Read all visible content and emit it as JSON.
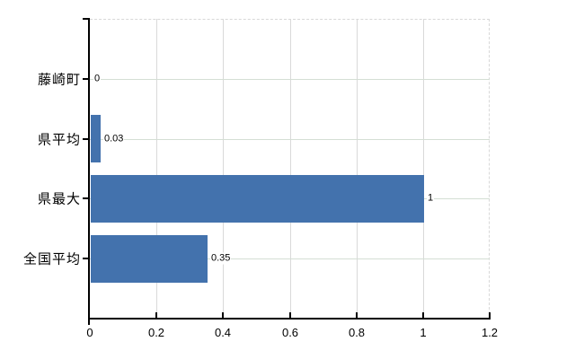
{
  "chart_data": {
    "type": "bar",
    "orientation": "horizontal",
    "title": "",
    "xlabel": "",
    "ylabel": "",
    "categories": [
      "藤崎町",
      "県平均",
      "県最大",
      "全国平均"
    ],
    "values": [
      0,
      0.03,
      1,
      0.35
    ],
    "value_labels": [
      "0",
      "0.03",
      "1",
      "0.35"
    ],
    "xlim": [
      0,
      1.2
    ],
    "x_ticks": [
      0,
      0.2,
      0.4,
      0.6,
      0.8,
      1,
      1.2
    ],
    "x_tick_labels": [
      "0",
      "0.2",
      "0.4",
      "0.6",
      "0.8",
      "1",
      "1.2"
    ],
    "grid": true,
    "legend": "none",
    "colors": {
      "bar": "#4372ad",
      "h_gridline": "#d4ded4",
      "v_gridline": "#d9d9d9",
      "plot_border": "#d8d8d8",
      "axis": "#000000",
      "text": "#000000",
      "background": "#ffffff"
    }
  }
}
